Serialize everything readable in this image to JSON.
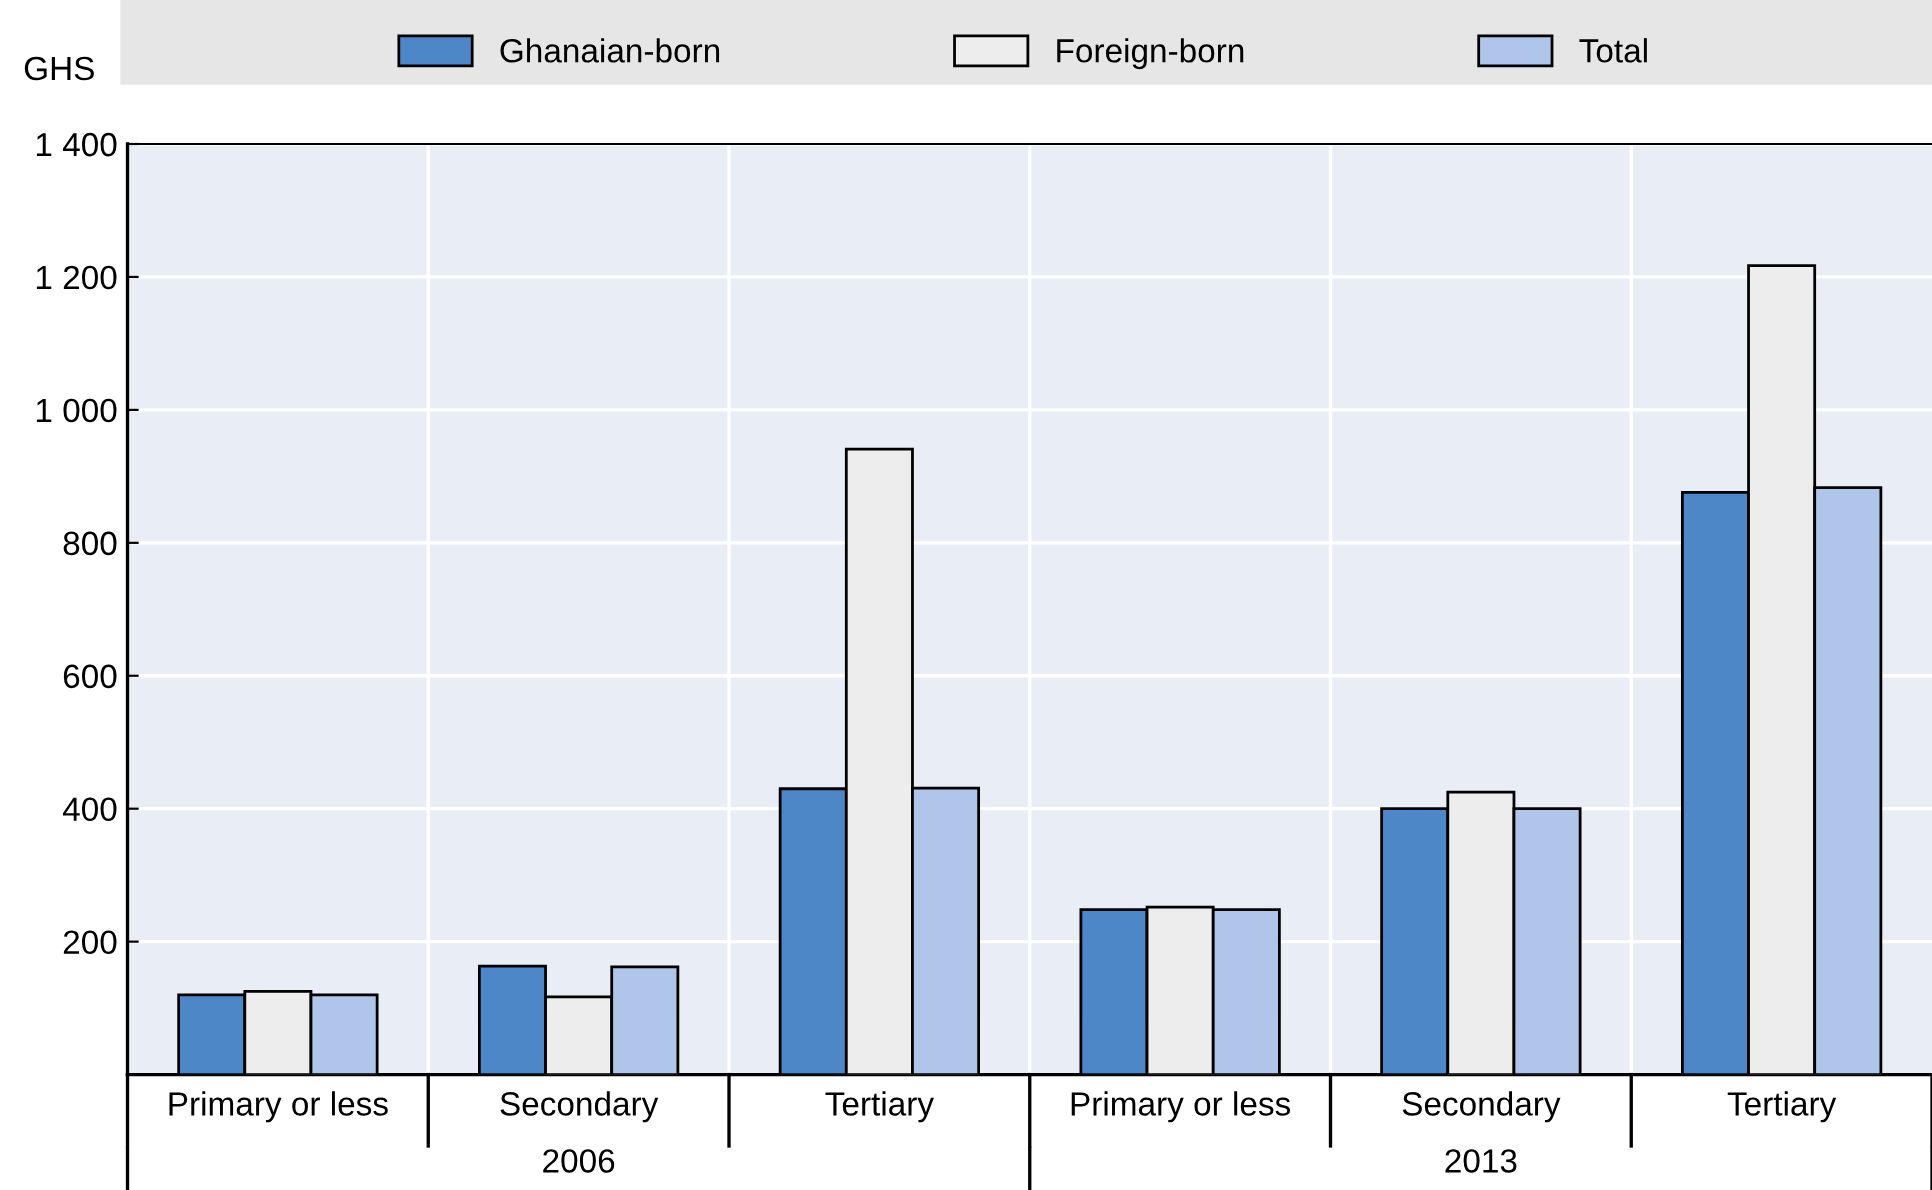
{
  "chart_data": {
    "type": "bar",
    "ylabel": "GHS",
    "categories": [
      "Primary or less",
      "Secondary",
      "Tertiary",
      "Primary or less",
      "Secondary",
      "Tertiary"
    ],
    "series": [
      {
        "name": "Ghanaian-born",
        "color": "#4e87c7",
        "values": [
          120,
          163,
          430,
          248,
          400,
          876
        ]
      },
      {
        "name": "Foreign-born",
        "color": "#ededed",
        "values": [
          125,
          117,
          941,
          252,
          425,
          1217
        ]
      },
      {
        "name": "Total",
        "color": "#afc6ea",
        "values": [
          120,
          162,
          431,
          248,
          400,
          883
        ]
      }
    ],
    "annotations": [
      "2006",
      "2013"
    ],
    "ylim": [
      0,
      1400
    ],
    "yticks": [
      200,
      400,
      600,
      800,
      {
        "value": 1000,
        "label": "1 000"
      },
      {
        "value": 1200,
        "label": "1 200"
      },
      {
        "value": 1400,
        "label": "1 400"
      }
    ],
    "grid": true,
    "legend": "top"
  }
}
